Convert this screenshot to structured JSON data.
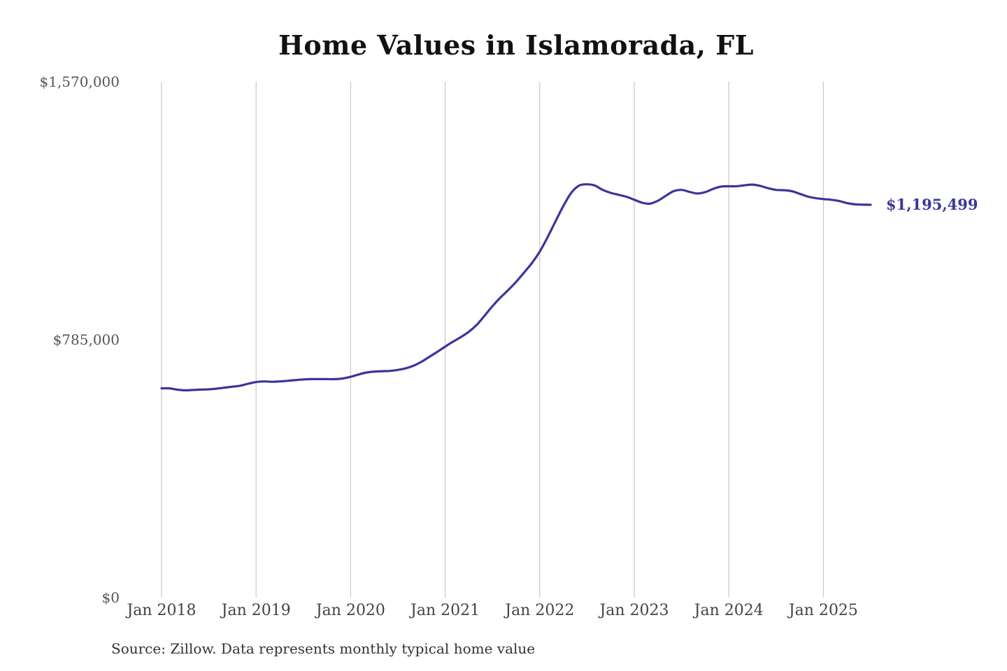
{
  "chart_data": {
    "type": "line",
    "title": "Home Values in Islamorada, FL",
    "xlabel": "",
    "ylabel": "",
    "ylim": [
      0,
      1570000
    ],
    "y_ticks": [
      {
        "value": 0,
        "label": "$0"
      },
      {
        "value": 785000,
        "label": "$785,000"
      },
      {
        "value": 1570000,
        "label": "$1,570,000"
      }
    ],
    "x_ticks": [
      "Jan 2018",
      "Jan 2019",
      "Jan 2020",
      "Jan 2021",
      "Jan 2022",
      "Jan 2023",
      "Jan 2024",
      "Jan 2025"
    ],
    "x_range": [
      "2018-01",
      "2025-07"
    ],
    "grid": "vertical",
    "line_color": "#3b3699",
    "series": [
      {
        "points": [
          [
            "2018-01",
            637000
          ],
          [
            "2018-02",
            637000
          ],
          [
            "2018-03",
            633000
          ],
          [
            "2018-04",
            631000
          ],
          [
            "2018-05",
            632000
          ],
          [
            "2018-06",
            633000
          ],
          [
            "2018-07",
            634000
          ],
          [
            "2018-08",
            636000
          ],
          [
            "2018-09",
            639000
          ],
          [
            "2018-10",
            642000
          ],
          [
            "2018-11",
            645000
          ],
          [
            "2018-12",
            651000
          ],
          [
            "2019-01",
            656000
          ],
          [
            "2019-02",
            658000
          ],
          [
            "2019-03",
            657000
          ],
          [
            "2019-04",
            658000
          ],
          [
            "2019-05",
            660000
          ],
          [
            "2019-06",
            662000
          ],
          [
            "2019-07",
            664000
          ],
          [
            "2019-08",
            665000
          ],
          [
            "2019-09",
            665000
          ],
          [
            "2019-10",
            665000
          ],
          [
            "2019-11",
            665000
          ],
          [
            "2019-12",
            667000
          ],
          [
            "2020-01",
            672000
          ],
          [
            "2020-02",
            679000
          ],
          [
            "2020-03",
            685000
          ],
          [
            "2020-04",
            688000
          ],
          [
            "2020-05",
            689000
          ],
          [
            "2020-06",
            690000
          ],
          [
            "2020-07",
            693000
          ],
          [
            "2020-08",
            698000
          ],
          [
            "2020-09",
            706000
          ],
          [
            "2020-10",
            718000
          ],
          [
            "2020-11",
            733000
          ],
          [
            "2020-12",
            748000
          ],
          [
            "2021-01",
            764000
          ],
          [
            "2021-02",
            779000
          ],
          [
            "2021-03",
            793000
          ],
          [
            "2021-04",
            809000
          ],
          [
            "2021-05",
            830000
          ],
          [
            "2021-06",
            858000
          ],
          [
            "2021-07",
            887000
          ],
          [
            "2021-08",
            913000
          ],
          [
            "2021-09",
            936000
          ],
          [
            "2021-10",
            961000
          ],
          [
            "2021-11",
            989000
          ],
          [
            "2021-12",
            1018000
          ],
          [
            "2022-01",
            1053000
          ],
          [
            "2022-02",
            1097000
          ],
          [
            "2022-03",
            1145000
          ],
          [
            "2022-04",
            1192000
          ],
          [
            "2022-05",
            1232000
          ],
          [
            "2022-06",
            1254000
          ],
          [
            "2022-07",
            1258000
          ],
          [
            "2022-08",
            1254000
          ],
          [
            "2022-09",
            1241000
          ],
          [
            "2022-10",
            1232000
          ],
          [
            "2022-11",
            1226000
          ],
          [
            "2022-12",
            1220000
          ],
          [
            "2023-01",
            1211000
          ],
          [
            "2023-02",
            1202000
          ],
          [
            "2023-03",
            1199000
          ],
          [
            "2023-04",
            1208000
          ],
          [
            "2023-05",
            1223000
          ],
          [
            "2023-06",
            1237000
          ],
          [
            "2023-07",
            1241000
          ],
          [
            "2023-08",
            1235000
          ],
          [
            "2023-09",
            1230000
          ],
          [
            "2023-10",
            1234000
          ],
          [
            "2023-11",
            1244000
          ],
          [
            "2023-12",
            1251000
          ],
          [
            "2024-01",
            1252000
          ],
          [
            "2024-02",
            1252000
          ],
          [
            "2024-03",
            1255000
          ],
          [
            "2024-04",
            1257000
          ],
          [
            "2024-05",
            1253000
          ],
          [
            "2024-06",
            1246000
          ],
          [
            "2024-07",
            1241000
          ],
          [
            "2024-08",
            1240000
          ],
          [
            "2024-09",
            1237000
          ],
          [
            "2024-10",
            1229000
          ],
          [
            "2024-11",
            1221000
          ],
          [
            "2024-12",
            1216000
          ],
          [
            "2025-01",
            1213000
          ],
          [
            "2025-02",
            1211000
          ],
          [
            "2025-03",
            1207000
          ],
          [
            "2025-04",
            1201000
          ],
          [
            "2025-05",
            1197000
          ],
          [
            "2025-06",
            1196000
          ],
          [
            "2025-07",
            1195499
          ]
        ]
      }
    ],
    "end_label": "$1,195,499",
    "source": "Source: Zillow. Data represents monthly typical home value"
  }
}
